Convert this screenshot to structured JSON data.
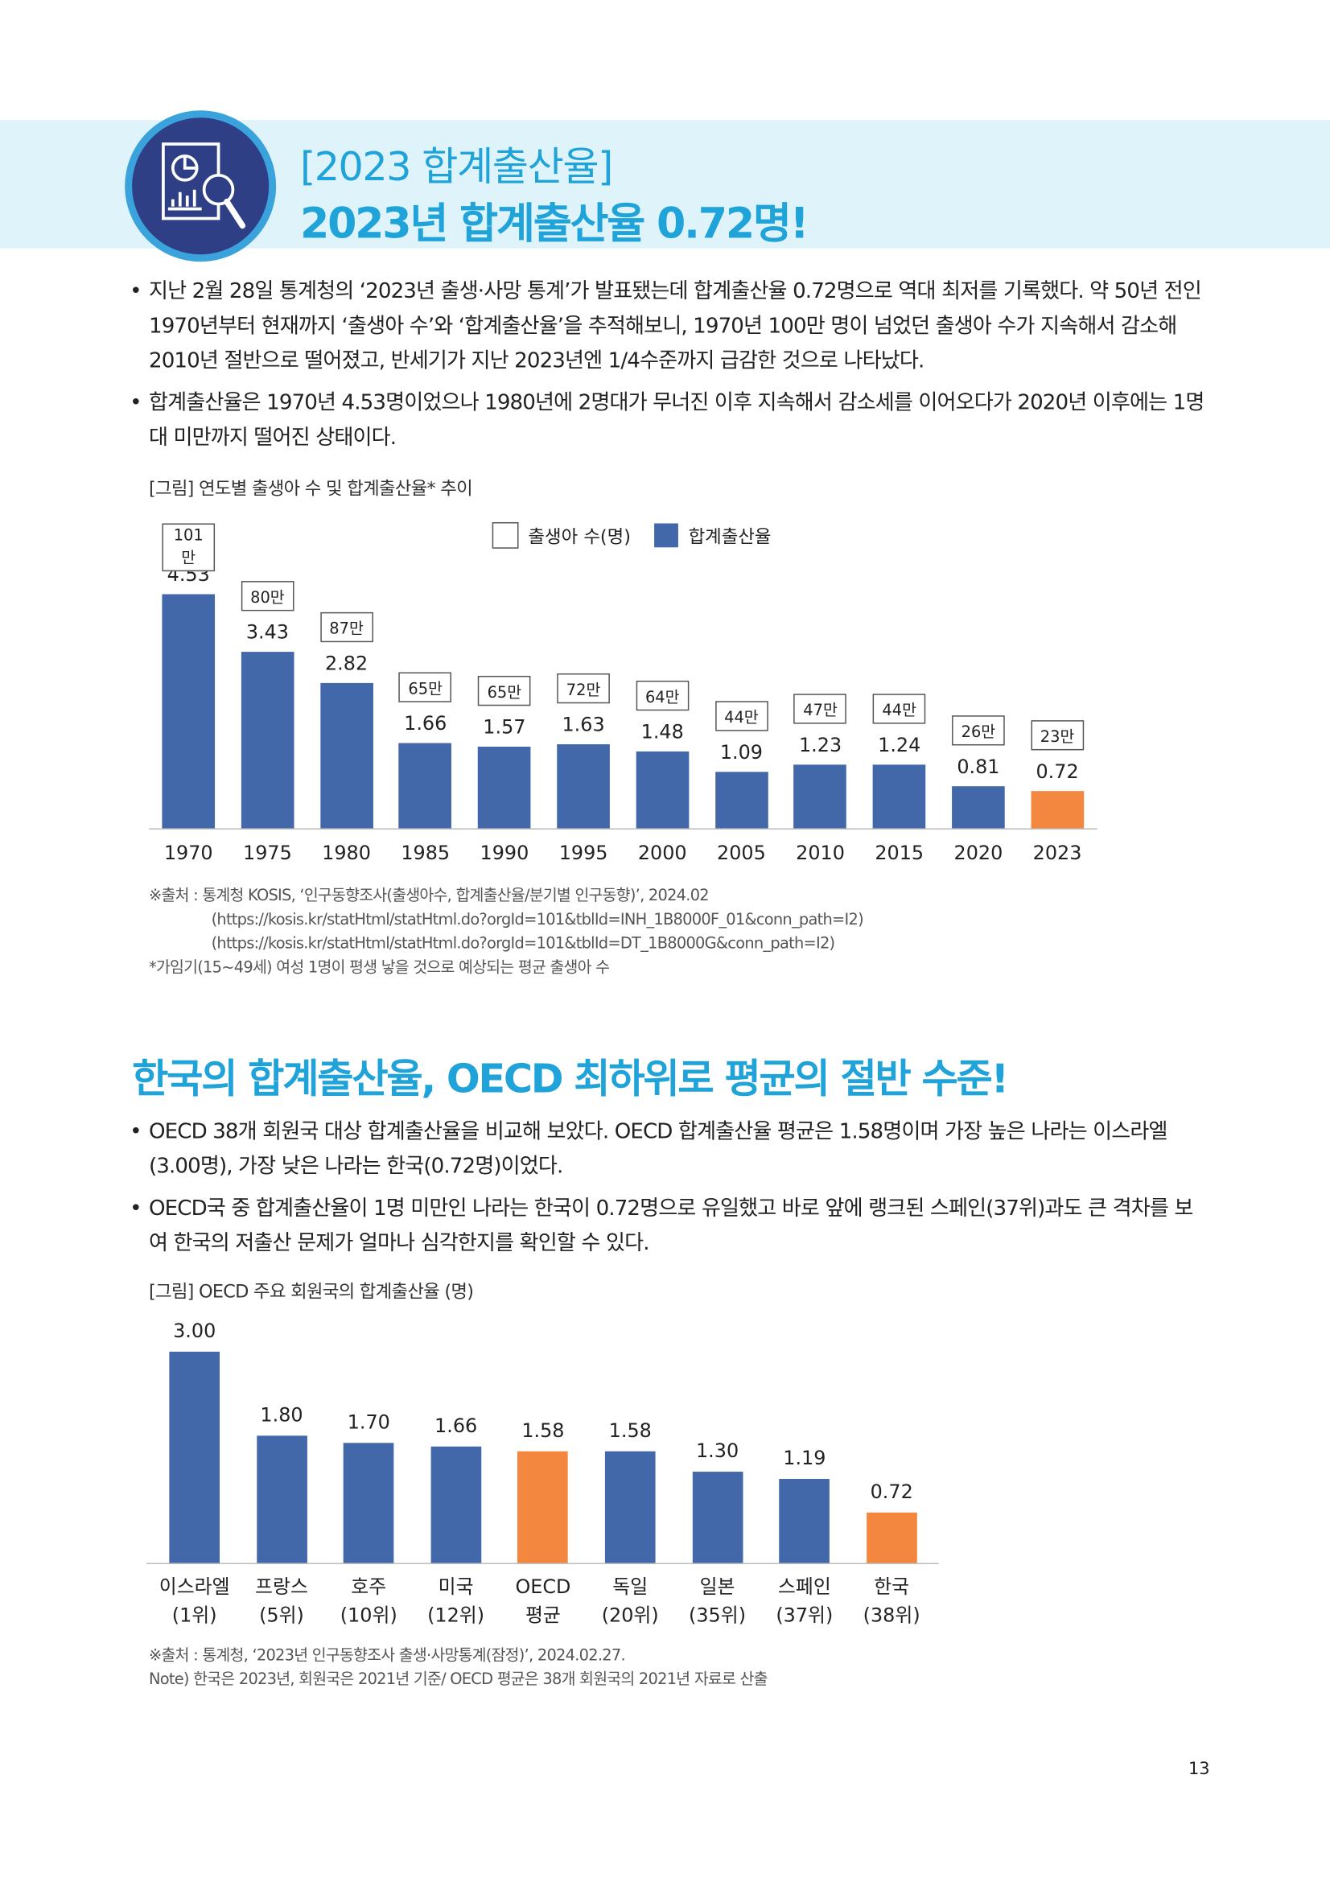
{
  "header": {
    "subtitle": "[2023 합계출산율]",
    "title": "2023년 합계출산율 0.72명!",
    "icon": "report-magnifier-icon"
  },
  "section1": {
    "bullets": [
      "지난 2월 28일 통계청의 ‘2023년 출생·사망 통계’가 발표됐는데 합계출산율 0.72명으로 역대 최저를 기록했다. 약 50년 전인 1970년부터 현재까지 ‘출생아 수’와 ‘합계출산율’을 추적해보니, 1970년 100만 명이 넘었던 출생아 수가 지속해서 감소해 2010년 절반으로 떨어졌고, 반세기가 지난 2023년엔 1/4수준까지 급감한 것으로 나타났다.",
      "합계출산율은 1970년 4.53명이었으나 1980년에 2명대가 무너진 이후 지속해서 감소세를 이어오다가 2020년 이후에는 1명대 미만까지 떨어진 상태이다."
    ],
    "caption": "[그림] 연도별 출생아 수 및 합계출산율* 추이",
    "sources": [
      "※출처 : 통계청 KOSIS, ‘인구동향조사(출생아수, 합계출산율/분기별 인구동향)’, 2024.02",
      "(https://kosis.kr/statHtml/statHtml.do?orgId=101&tblId=INH_1B8000F_01&conn_path=I2)",
      "(https://kosis.kr/statHtml/statHtml.do?orgId=101&tblId=DT_1B8000G&conn_path=I2)",
      "*가임기(15~49세) 여성 1명이 평생 낳을 것으로 예상되는 평균 출생아 수"
    ]
  },
  "section2": {
    "heading": "한국의 합계출산율, OECD 최하위로 평균의 절반 수준!",
    "bullets": [
      "OECD 38개 회원국 대상 합계출산율을 비교해 보았다. OECD 합계출산율 평균은 1.58명이며 가장 높은 나라는 이스라엘(3.00명), 가장 낮은 나라는 한국(0.72명)이었다.",
      "OECD국 중 합계출산율이 1명 미만인 나라는 한국이 0.72명으로 유일했고 바로 앞에 랭크된 스페인(37위)과도 큰 격차를 보여 한국의 저출산 문제가 얼마나 심각한지를 확인할 수 있다."
    ],
    "caption": "[그림] OECD 주요 회원국의 합계출산율 (명)",
    "sources": [
      "※출처 : 통계청, ‘2023년 인구동향조사 출생·사망통계(잠정)’, 2024.02.27.",
      "Note) 한국은 2023년, 회원국은 2021년 기준/ OECD 평균은 38개 회원국의 2021년 자료로 산출"
    ]
  },
  "page_number": "13",
  "colors": {
    "bar": "#4268aa",
    "highlight": "#f4873f",
    "accent": "#1fa3d8"
  },
  "chart_data": [
    {
      "type": "bar",
      "title": "[그림] 연도별 출생아 수 및 합계출산율* 추이",
      "legend": [
        "출생아 수(명)",
        "합계출산율"
      ],
      "legend_position": "top-center",
      "categories": [
        "1970",
        "1975",
        "1980",
        "1985",
        "1990",
        "1995",
        "2000",
        "2005",
        "2010",
        "2015",
        "2020",
        "2023"
      ],
      "values": [
        4.53,
        3.43,
        2.82,
        1.66,
        1.57,
        1.63,
        1.48,
        1.09,
        1.23,
        1.24,
        0.81,
        0.72
      ],
      "value_labels": [
        "4.53",
        "3.43",
        "2.82",
        "1.66",
        "1.57",
        "1.63",
        "1.48",
        "1.09",
        "1.23",
        "1.24",
        "0.81",
        "0.72"
      ],
      "births_labels": [
        "101만",
        "80만",
        "87만",
        "65만",
        "65만",
        "72만",
        "64만",
        "44만",
        "47만",
        "44만",
        "26만",
        "23만"
      ],
      "highlight_index": 11,
      "ylim": [
        0,
        4.6
      ]
    },
    {
      "type": "bar",
      "title": "[그림] OECD 주요 회원국의 합계출산율 (명)",
      "categories": [
        [
          "이스라엘",
          "(1위)"
        ],
        [
          "프랑스",
          "(5위)"
        ],
        [
          "호주",
          "(10위)"
        ],
        [
          "미국",
          "(12위)"
        ],
        [
          "OECD",
          "평균"
        ],
        [
          "독일",
          "(20위)"
        ],
        [
          "일본",
          "(35위)"
        ],
        [
          "스페인",
          "(37위)"
        ],
        [
          "한국",
          "(38위)"
        ]
      ],
      "values": [
        3.0,
        1.8,
        1.7,
        1.66,
        1.58,
        1.58,
        1.3,
        1.19,
        0.72
      ],
      "value_labels": [
        "3.00",
        "1.80",
        "1.70",
        "1.66",
        "1.58",
        "1.58",
        "1.30",
        "1.19",
        "0.72"
      ],
      "highlight_indices": [
        4,
        8
      ],
      "ylim": [
        0,
        3.0
      ]
    }
  ]
}
